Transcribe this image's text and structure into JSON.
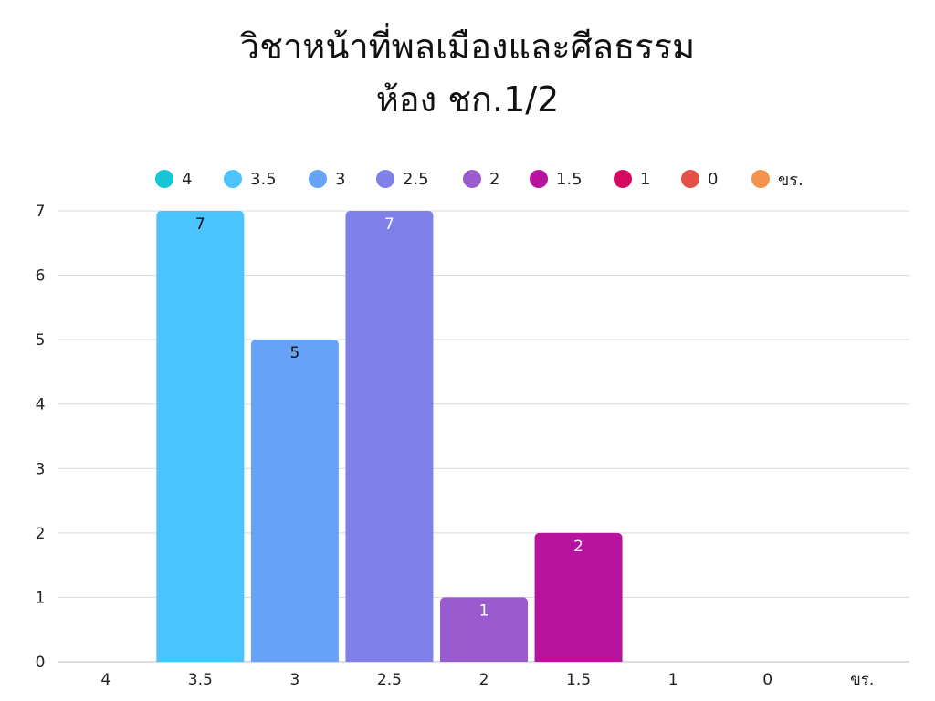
{
  "header": {
    "title_line1": "วิชาหน้าที่พลเมืองและศีลธรรม",
    "title_line2": "ห้อง ชก.1/2"
  },
  "chart_data": {
    "type": "bar",
    "title": "วิชาหน้าที่พลเมืองและศีลธรรม ห้อง ชก.1/2",
    "xlabel": "",
    "ylabel": "",
    "categories": [
      "4",
      "3.5",
      "3",
      "2.5",
      "2",
      "1.5",
      "1",
      "0",
      "ขร."
    ],
    "values": [
      0,
      7,
      5,
      7,
      1,
      2,
      0,
      0,
      0
    ],
    "data_labels": [
      "",
      "7",
      "5",
      "7",
      "1",
      "2",
      "",
      "",
      ""
    ],
    "colors": [
      "#16c6d6",
      "#4ac3ff",
      "#66a3f7",
      "#7f80e8",
      "#9a5bce",
      "#b8139e",
      "#d5095f",
      "#e35048",
      "#f5944e"
    ],
    "label_colors": [
      "#111111",
      "#111111",
      "#111111",
      "#ffffff",
      "#ffffff",
      "#ffffff",
      "#ffffff",
      "#ffffff",
      "#ffffff"
    ],
    "ylim": [
      0,
      7
    ],
    "yticks": [
      "0",
      "1",
      "2",
      "3",
      "4",
      "5",
      "6",
      "7"
    ],
    "grid": true,
    "legend_placement": "top-center",
    "legend": [
      "4",
      "3.5",
      "3",
      "2.5",
      "2",
      "1.5",
      "1",
      "0",
      "ขร."
    ]
  }
}
